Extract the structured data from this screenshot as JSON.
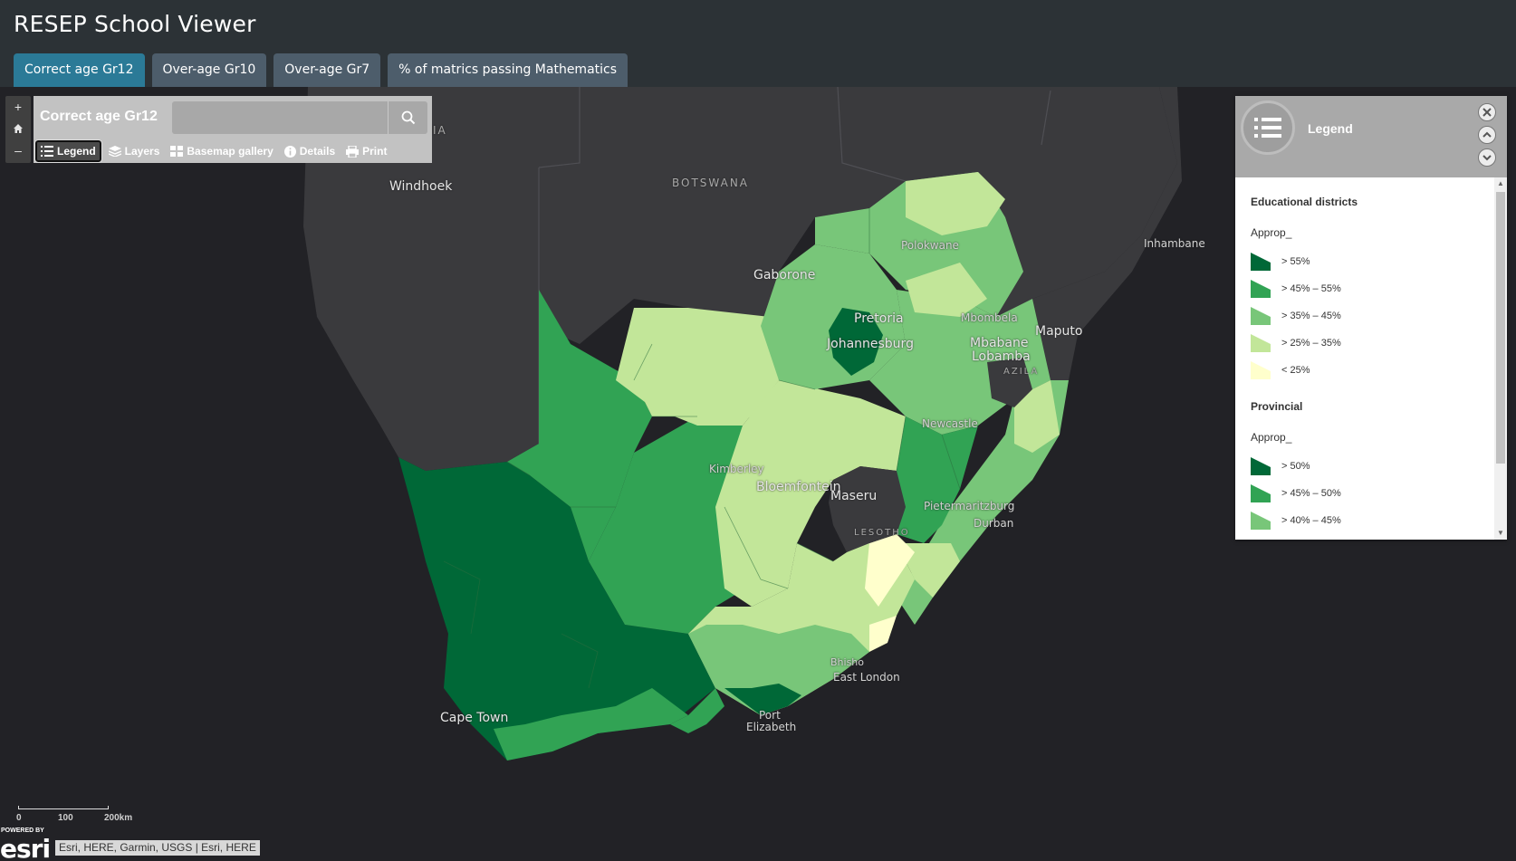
{
  "app": {
    "title": "RESEP School Viewer"
  },
  "tabs": [
    {
      "label": "Correct age Gr12",
      "active": true
    },
    {
      "label": "Over-age Gr10",
      "active": false
    },
    {
      "label": "Over-age Gr7",
      "active": false
    },
    {
      "label": "% of matrics passing Mathematics",
      "active": false
    }
  ],
  "map_controls": {
    "zoom_in": "+",
    "home": "home-icon",
    "zoom_out": "–"
  },
  "panel": {
    "title": "Correct age Gr12",
    "search_placeholder": "",
    "tools": [
      {
        "label": "Legend",
        "icon": "legend-icon",
        "active": true
      },
      {
        "label": "Layers",
        "icon": "layers-icon",
        "active": false
      },
      {
        "label": "Basemap gallery",
        "icon": "basemap-icon",
        "active": false
      },
      {
        "label": "Details",
        "icon": "info-icon",
        "active": false
      },
      {
        "label": "Print",
        "icon": "print-icon",
        "active": false
      }
    ]
  },
  "map_labels": {
    "windhoek": "Windhoek",
    "botswana": "BOTSWANA",
    "gaborone": "Gaborone",
    "polokwane": "Polokwane",
    "pretoria": "Pretoria",
    "johannesburg": "Johannesburg",
    "mbombela": "Mbombela",
    "mbabane": "Mbabane",
    "lobamba": "Lobamba",
    "maputo": "Maputo",
    "inhambane": "Inhambane",
    "newcastle": "Newcastle",
    "kimberley": "Kimberley",
    "bloemfontein": "Bloemfontein",
    "maseru": "Maseru",
    "lesotho": "LESOTHO",
    "pietermaritzburg": "Pietermaritzburg",
    "durban": "Durban",
    "bhisho": "Bhisho",
    "east_london": "East London",
    "port": "Port",
    "elizabeth": "Elizabeth",
    "cape_town": "Cape Town",
    "eswatini_fragment": "AZILA",
    "namibia_fragment": "IA"
  },
  "legend": {
    "title": "Legend",
    "layers": [
      {
        "name": "Educational districts",
        "field": "Approp_",
        "classes": [
          {
            "label": "> 55%",
            "color": "#006837"
          },
          {
            "label": "> 45% – 55%",
            "color": "#31a354"
          },
          {
            "label": "> 35% – 45%",
            "color": "#78c679"
          },
          {
            "label": "> 25% – 35%",
            "color": "#c2e699"
          },
          {
            "label": "< 25%",
            "color": "#ffffcc"
          }
        ]
      },
      {
        "name": "Provincial",
        "field": "Approp_",
        "classes": [
          {
            "label": "> 50%",
            "color": "#006837"
          },
          {
            "label": "> 45% – 50%",
            "color": "#31a354"
          },
          {
            "label": "> 40% – 45%",
            "color": "#78c679"
          }
        ]
      }
    ]
  },
  "scale": {
    "l0": "0",
    "l1": "100",
    "l2": "200km"
  },
  "esri": {
    "powered": "POWERED BY",
    "logo": "esri"
  },
  "attribution": "Esri, HERE, Garmin, USGS | Esri, HERE"
}
